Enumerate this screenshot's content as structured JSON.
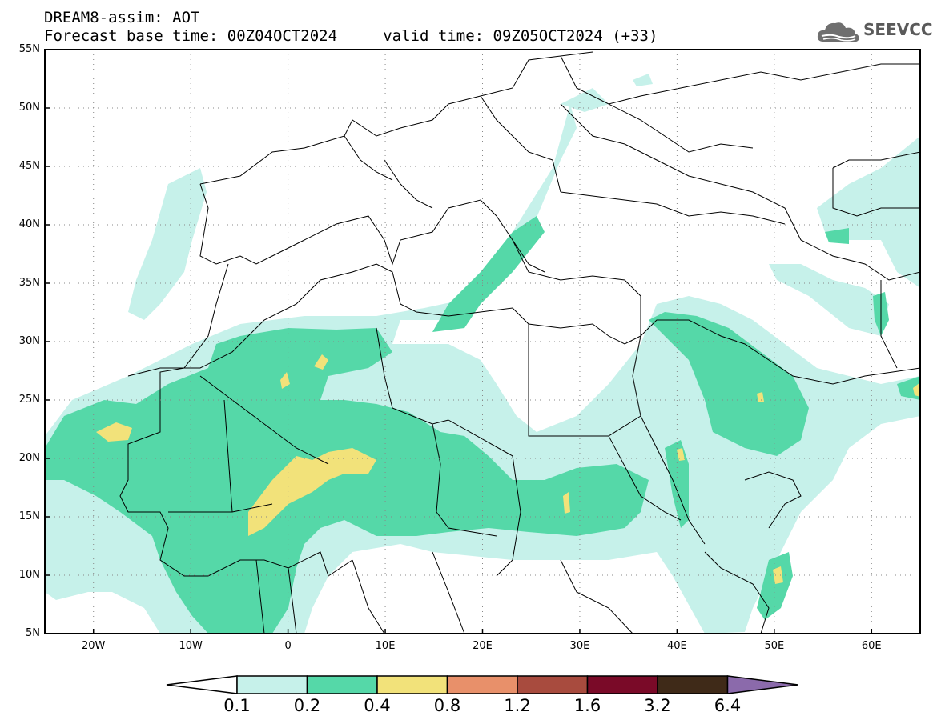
{
  "title": {
    "line1": "DREAM8-assim: AOT",
    "line2": "Forecast base time: 00Z04OCT2024     valid time: 09Z05OCT2024 (+33)"
  },
  "logo": {
    "text": "SEEVCCC",
    "icon": "cloud-icon"
  },
  "map": {
    "lon_range": [
      -25,
      65
    ],
    "lat_range": [
      5,
      55
    ],
    "lat_ticks": [
      {
        "value": 55,
        "label": "55N"
      },
      {
        "value": 50,
        "label": "50N"
      },
      {
        "value": 45,
        "label": "45N"
      },
      {
        "value": 40,
        "label": "40N"
      },
      {
        "value": 35,
        "label": "35N"
      },
      {
        "value": 30,
        "label": "30N"
      },
      {
        "value": 25,
        "label": "25N"
      },
      {
        "value": 20,
        "label": "20N"
      },
      {
        "value": 15,
        "label": "15N"
      },
      {
        "value": 10,
        "label": "10N"
      },
      {
        "value": 5,
        "label": "5N"
      }
    ],
    "lon_ticks": [
      {
        "value": -20,
        "label": "20W"
      },
      {
        "value": -10,
        "label": "10W"
      },
      {
        "value": 0,
        "label": "0"
      },
      {
        "value": 10,
        "label": "10E"
      },
      {
        "value": 20,
        "label": "20E"
      },
      {
        "value": 30,
        "label": "30E"
      },
      {
        "value": 40,
        "label": "40E"
      },
      {
        "value": 50,
        "label": "50E"
      },
      {
        "value": 60,
        "label": "60E"
      }
    ],
    "grid": "dotted"
  },
  "colorbar": {
    "levels": [
      "0.1",
      "0.2",
      "0.4",
      "0.8",
      "1.2",
      "1.6",
      "3.2",
      "6.4"
    ],
    "colors": [
      "#ffffff",
      "#c6f1ea",
      "#55d8a8",
      "#f2e27a",
      "#e8906a",
      "#a84b3e",
      "#7a0a28",
      "#3f2a18",
      "#8b6aab"
    ]
  }
}
